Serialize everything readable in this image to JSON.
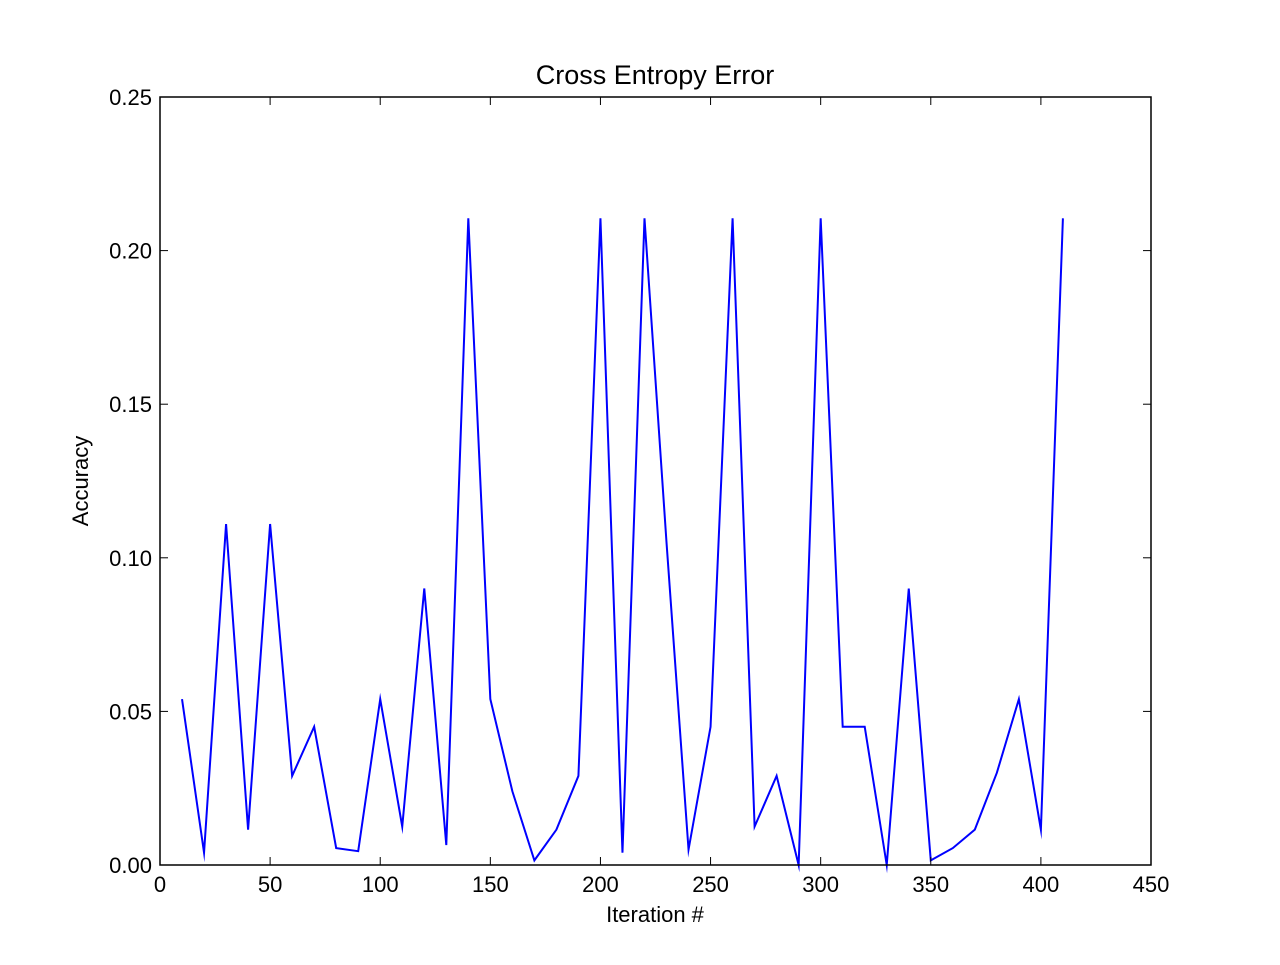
{
  "chart_data": {
    "type": "line",
    "title": "Cross Entropy Error",
    "xlabel": "Iteration #",
    "ylabel": "Accuracy",
    "xlim": [
      0,
      450
    ],
    "ylim": [
      0,
      0.25
    ],
    "xticks": [
      "0",
      "50",
      "100",
      "150",
      "200",
      "250",
      "300",
      "350",
      "400",
      "450"
    ],
    "yticks": [
      "0.00",
      "0.05",
      "0.10",
      "0.15",
      "0.20",
      "0.25"
    ],
    "grid": false,
    "legend": "none",
    "series": [
      {
        "color": "#0000ff",
        "x": [
          10,
          20,
          30,
          40,
          50,
          60,
          70,
          80,
          90,
          100,
          110,
          120,
          130,
          140,
          150,
          160,
          170,
          180,
          190,
          200,
          210,
          220,
          230,
          240,
          250,
          260,
          270,
          280,
          290,
          300,
          310,
          320,
          330,
          340,
          350,
          360,
          370,
          380,
          390,
          400,
          410
        ],
        "values": [
          0.054,
          0.004,
          0.111,
          0.0115,
          0.111,
          0.029,
          0.045,
          0.0055,
          0.0045,
          0.054,
          0.0125,
          0.09,
          0.0065,
          0.2105,
          0.054,
          0.024,
          0.0015,
          0.0115,
          0.029,
          0.2105,
          0.004,
          0.2105,
          0.105,
          0.005,
          0.045,
          0.2105,
          0.0125,
          0.029,
          0.0,
          0.2105,
          0.045,
          0.045,
          0.0,
          0.09,
          0.0015,
          0.0055,
          0.0115,
          0.03,
          0.054,
          0.0115,
          0.2105
        ]
      }
    ]
  }
}
